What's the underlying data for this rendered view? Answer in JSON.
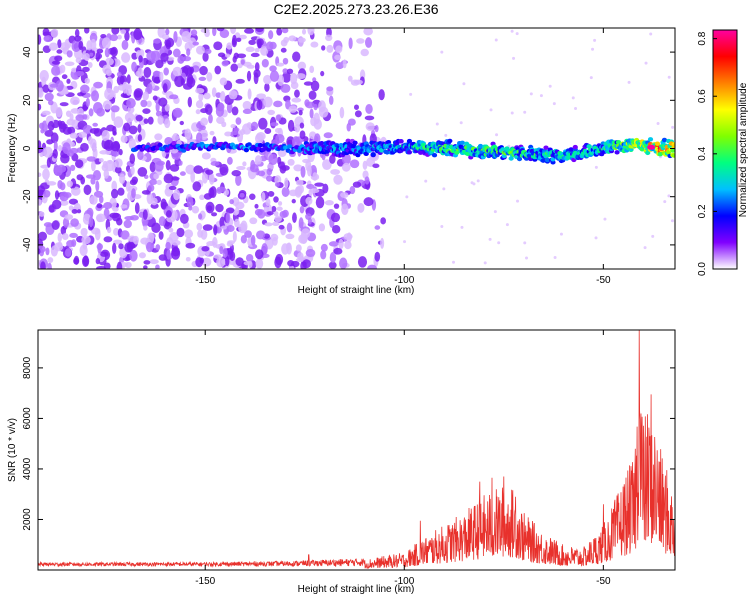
{
  "title": "C2E2.2025.273.23.26.E36",
  "chart_data": [
    {
      "type": "heatmap",
      "xlabel": "Height of straight line (km)",
      "ylabel": "Frequency (Hz)",
      "xlim": [
        -192,
        -32
      ],
      "ylim": [
        -50,
        50
      ],
      "xticks": [
        -150,
        -100,
        -50
      ],
      "xtick_labels": [
        "-150",
        "-100",
        "-50"
      ],
      "yticks": [
        -40,
        -20,
        0,
        20,
        40
      ],
      "ytick_labels": [
        "-40",
        "-20",
        "0",
        "20",
        "40"
      ],
      "colorbar": {
        "label": "Normalized spectral amplitude",
        "range": [
          0.0,
          0.83
        ],
        "ticks": [
          0.0,
          0.2,
          0.4,
          0.6,
          0.8
        ],
        "tick_labels": [
          "0.0",
          "0.2",
          "0.4",
          "0.6",
          "0.8"
        ],
        "colors": [
          "#ffffff",
          "#8000ff",
          "#0000ff",
          "#00c0ff",
          "#00ff80",
          "#80ff00",
          "#ffff00",
          "#ff8000",
          "#ff0000",
          "#ff00a0"
        ]
      },
      "band_centerline": {
        "x": [
          -165,
          -150,
          -125,
          -110,
          -100,
          -90,
          -80,
          -70,
          -60,
          -50,
          -42,
          -35
        ],
        "y": [
          0,
          1,
          0,
          0,
          1,
          0,
          -1,
          -2,
          -3,
          0,
          2,
          0
        ]
      },
      "band_peak_amplitude": {
        "x": [
          -165,
          -150,
          -125,
          -110,
          -100,
          -90,
          -80,
          -70,
          -60,
          -50,
          -42,
          -35
        ],
        "values": [
          0.25,
          0.28,
          0.3,
          0.32,
          0.38,
          0.45,
          0.48,
          0.45,
          0.4,
          0.42,
          0.6,
          0.83
        ]
      },
      "noise_region": {
        "x_start": -192,
        "x_end": -105
      },
      "grid": false
    },
    {
      "type": "line",
      "xlabel": "Height of straight line (km)",
      "ylabel": "SNR (10 * v/v)",
      "xlim": [
        -192,
        -32
      ],
      "ylim": [
        0,
        9500
      ],
      "xticks": [
        -150,
        -100,
        -50
      ],
      "xtick_labels": [
        "-150",
        "-100",
        "-50"
      ],
      "yticks": [
        2000,
        4000,
        6000,
        8000
      ],
      "ytick_labels": [
        "2000",
        "4000",
        "6000",
        "8000"
      ],
      "color": "#e8312c",
      "envelope": {
        "x": [
          -192,
          -150,
          -130,
          -110,
          -100,
          -95,
          -90,
          -85,
          -80,
          -75,
          -72,
          -70,
          -65,
          -60,
          -55,
          -50,
          -46,
          -44,
          -42,
          -41,
          -40,
          -38,
          -36,
          -34,
          -32
        ],
        "y": [
          250,
          260,
          300,
          420,
          700,
          1300,
          1800,
          2300,
          3000,
          3400,
          3200,
          2300,
          1500,
          1000,
          900,
          1800,
          3200,
          4000,
          4500,
          9500,
          6000,
          6800,
          5000,
          4000,
          2800
        ]
      },
      "spikes": [
        {
          "x": -124,
          "y": 600
        },
        {
          "x": -96,
          "y": 1950
        },
        {
          "x": -81,
          "y": 3500
        },
        {
          "x": -78,
          "y": 3650
        },
        {
          "x": -75,
          "y": 3700
        },
        {
          "x": -72,
          "y": 2900
        },
        {
          "x": -50,
          "y": 2600
        },
        {
          "x": -45,
          "y": 3300
        },
        {
          "x": -42,
          "y": 4800
        },
        {
          "x": -41,
          "y": 9500
        },
        {
          "x": -38,
          "y": 6950
        },
        {
          "x": -36,
          "y": 4300
        },
        {
          "x": -35,
          "y": 3800
        }
      ],
      "grid": false
    }
  ]
}
